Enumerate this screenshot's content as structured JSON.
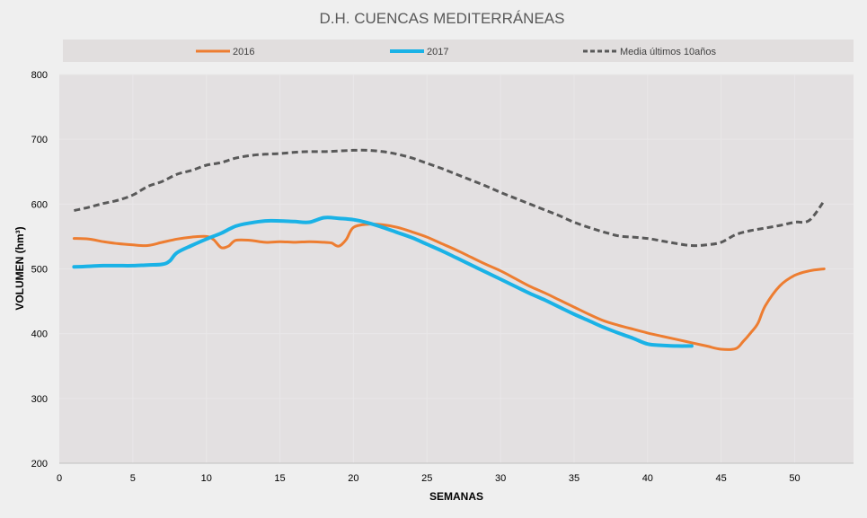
{
  "chart_data": {
    "type": "line",
    "title": "D.H. CUENCAS MEDITERRÁNEAS",
    "xlabel": "SEMANAS",
    "ylabel": "VOLUMEN (hm³)",
    "xlim": [
      0,
      54
    ],
    "ylim": [
      200,
      800
    ],
    "xticks": [
      0,
      5,
      10,
      15,
      20,
      25,
      30,
      35,
      40,
      45,
      50
    ],
    "yticks": [
      200,
      300,
      400,
      500,
      600,
      700,
      800
    ],
    "grid": true,
    "legend_position": "top",
    "series": [
      {
        "name": "2016",
        "color": "#ed7d31",
        "style": "solid",
        "x": [
          1,
          2,
          3,
          4,
          5,
          6,
          7,
          8,
          9,
          10,
          10.5,
          11,
          11.5,
          12,
          13,
          14,
          15,
          16,
          17,
          18,
          18.5,
          19,
          19.5,
          20,
          21,
          22,
          23,
          24,
          25,
          26,
          27,
          28,
          29,
          30,
          31,
          32,
          33,
          34,
          35,
          36,
          37,
          38,
          39,
          40,
          41,
          42,
          43,
          44,
          45,
          46,
          46.5,
          47,
          47.5,
          48,
          49,
          50,
          51,
          52
        ],
        "values": [
          547,
          546,
          542,
          539,
          537,
          536,
          541,
          546,
          549,
          550,
          545,
          533,
          535,
          544,
          544,
          541,
          542,
          541,
          542,
          541,
          540,
          535,
          545,
          564,
          569,
          568,
          564,
          557,
          549,
          539,
          529,
          518,
          507,
          497,
          485,
          473,
          463,
          452,
          441,
          430,
          420,
          413,
          407,
          401,
          396,
          391,
          386,
          381,
          376,
          377,
          388,
          401,
          416,
          443,
          474,
          490,
          497,
          500
        ]
      },
      {
        "name": "2017",
        "color": "#1ab2e6",
        "style": "solid",
        "x": [
          1,
          2,
          3,
          4,
          5,
          6,
          7,
          7.5,
          8,
          9,
          10,
          11,
          12,
          13,
          14,
          15,
          16,
          17,
          18,
          19,
          20,
          21,
          22,
          23,
          24,
          25,
          26,
          27,
          28,
          29,
          30,
          31,
          32,
          33,
          34,
          35,
          36,
          37,
          38,
          39,
          40,
          41,
          42,
          43
        ],
        "values": [
          503,
          504,
          505,
          505,
          505,
          506,
          507,
          512,
          525,
          536,
          546,
          555,
          566,
          571,
          574,
          574,
          573,
          572,
          579,
          578,
          576,
          571,
          564,
          556,
          548,
          538,
          528,
          517,
          506,
          495,
          484,
          473,
          462,
          452,
          441,
          430,
          420,
          410,
          401,
          393,
          384,
          382,
          381,
          381
        ]
      },
      {
        "name": "Media últimos 10años",
        "color": "#595959",
        "style": "dashed",
        "x": [
          1,
          2,
          3,
          4,
          5,
          6,
          7,
          8,
          9,
          10,
          11,
          12,
          13,
          14,
          15,
          16,
          17,
          18,
          19,
          20,
          21,
          22,
          23,
          24,
          25,
          26,
          27,
          28,
          29,
          30,
          31,
          32,
          33,
          34,
          35,
          36,
          37,
          38,
          39,
          40,
          41,
          42,
          43,
          44,
          45,
          46,
          47,
          48,
          49,
          50,
          51,
          52
        ],
        "values": [
          590,
          595,
          601,
          606,
          614,
          627,
          635,
          646,
          652,
          660,
          664,
          671,
          675,
          677,
          678,
          680,
          681,
          681,
          682,
          683,
          683,
          681,
          677,
          671,
          663,
          655,
          646,
          637,
          628,
          618,
          609,
          600,
          591,
          582,
          572,
          564,
          557,
          551,
          549,
          547,
          543,
          539,
          536,
          537,
          541,
          553,
          559,
          563,
          567,
          572,
          575,
          605
        ]
      }
    ]
  }
}
